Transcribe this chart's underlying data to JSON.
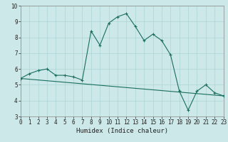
{
  "title": "",
  "xlabel": "Humidex (Indice chaleur)",
  "background_color": "#cce8e8",
  "line_color": "#1a6e5e",
  "xlim": [
    0,
    23
  ],
  "ylim": [
    3,
    10
  ],
  "xticks": [
    0,
    1,
    2,
    3,
    4,
    5,
    6,
    7,
    8,
    9,
    10,
    11,
    12,
    13,
    14,
    15,
    16,
    17,
    18,
    19,
    20,
    21,
    22,
    23
  ],
  "yticks": [
    3,
    4,
    5,
    6,
    7,
    8,
    9,
    10
  ],
  "series1_x": [
    0,
    1,
    2,
    3,
    4,
    5,
    6,
    7,
    8,
    9,
    10,
    11,
    12,
    13,
    14,
    15,
    16,
    17,
    18,
    19,
    20,
    21,
    22,
    23
  ],
  "series1_y": [
    5.4,
    5.7,
    5.9,
    6.0,
    5.6,
    5.6,
    5.5,
    5.3,
    8.4,
    7.5,
    8.9,
    9.3,
    9.5,
    8.7,
    7.8,
    8.2,
    7.8,
    6.9,
    4.6,
    3.4,
    4.6,
    5.0,
    4.5,
    4.3
  ],
  "series2_x": [
    0,
    23
  ],
  "series2_y": [
    5.4,
    4.3
  ],
  "grid_color": "#aad4d4",
  "tick_fontsize": 5.5,
  "xlabel_fontsize": 6.5
}
